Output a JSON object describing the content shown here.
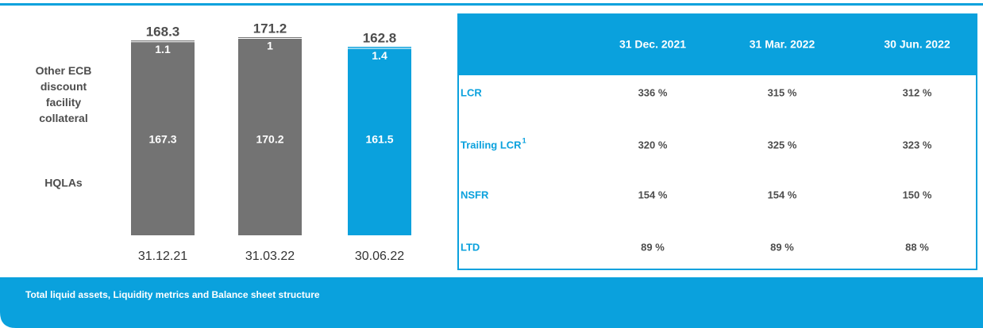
{
  "chart_data": {
    "type": "stacked_bar",
    "categories": [
      "31.12.21",
      "31.03.22",
      "30.06.22"
    ],
    "series": [
      {
        "name": "HQLAs",
        "values": [
          167.3,
          170.2,
          161.5
        ]
      },
      {
        "name": "Other ECB discount facility collateral",
        "values": [
          1.1,
          1.0,
          1.4
        ]
      }
    ],
    "totals": [
      168.3,
      171.2,
      162.8
    ],
    "colors": [
      "#737373",
      "#737373",
      "#0aa1dd"
    ]
  },
  "table": {
    "columns": [
      "31 Dec. 2021",
      "31 Mar. 2022",
      "30 Jun. 2022"
    ],
    "rows": [
      {
        "label": "LCR",
        "cells": [
          "336 %",
          "315 %",
          "312 %"
        ]
      },
      {
        "label": "Trailing LCR",
        "footnote": "1",
        "cells": [
          "320 %",
          "325 %",
          "323 %"
        ]
      },
      {
        "label": "NSFR",
        "cells": [
          "154 %",
          "154 %",
          "150 %"
        ]
      },
      {
        "label": "LTD",
        "cells": [
          "89 %",
          "89 %",
          "88 %"
        ]
      }
    ]
  },
  "footer": {
    "text": "Total liquid assets, Liquidity metrics and Balance sheet structure"
  }
}
